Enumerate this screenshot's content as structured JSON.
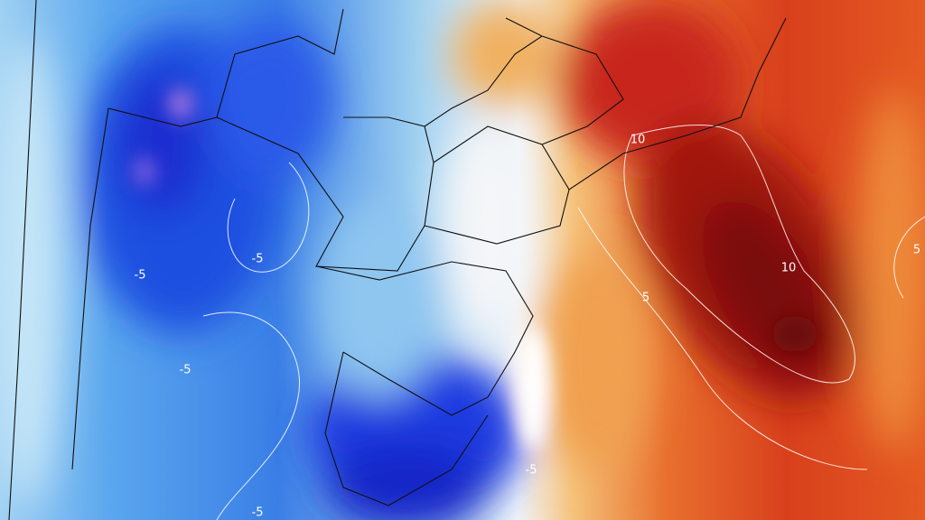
{
  "map": {
    "contour_labels": [
      "-5",
      "-5",
      "-5",
      "-5",
      "-5",
      "10",
      "10",
      "5",
      "5"
    ]
  }
}
